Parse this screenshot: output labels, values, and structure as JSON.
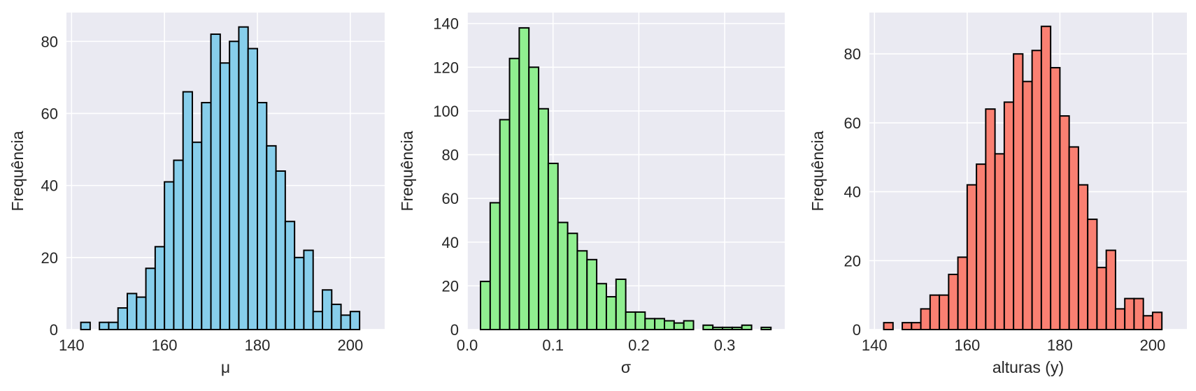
{
  "chart_data": [
    {
      "type": "bar",
      "subtype": "histogram",
      "xlabel": "μ",
      "ylabel": "Frequência",
      "xlim": [
        138.9,
        207.4
      ],
      "ylim": [
        0,
        88
      ],
      "xticks": [
        140,
        160,
        180,
        200
      ],
      "yticks": [
        0,
        20,
        40,
        60,
        80
      ],
      "color": "#87ceeb",
      "edgecolor": "#000000",
      "grid": true,
      "bin_start": 142.0,
      "bin_width": 2.0,
      "values": [
        2,
        0,
        2,
        2,
        6,
        10,
        9,
        17,
        23,
        41,
        47,
        66,
        52,
        63,
        82,
        74,
        80,
        84,
        78,
        63,
        51,
        44,
        30,
        20,
        22,
        5,
        11,
        7,
        4,
        5
      ]
    },
    {
      "type": "bar",
      "subtype": "histogram",
      "xlabel": "σ",
      "ylabel": "Frequência",
      "xlim": [
        0.0,
        0.37
      ],
      "ylim": [
        0,
        145
      ],
      "xticks": [
        0.0,
        0.1,
        0.2,
        0.3
      ],
      "xtick_labels": [
        "0.0",
        "0.1",
        "0.2",
        "0.3"
      ],
      "yticks": [
        0,
        20,
        40,
        60,
        80,
        100,
        120,
        140
      ],
      "color": "#90ee90",
      "edgecolor": "#000000",
      "grid": true,
      "bin_start": 0.0155,
      "bin_width": 0.01128,
      "values": [
        22,
        58,
        96,
        124,
        138,
        120,
        101,
        76,
        49,
        44,
        36,
        32,
        21,
        15,
        23,
        8,
        8,
        5,
        5,
        4,
        3,
        4,
        0,
        2,
        1,
        1,
        1,
        2,
        0,
        1
      ]
    },
    {
      "type": "bar",
      "subtype": "histogram",
      "xlabel": "alturas (y)",
      "ylabel": "Frequência",
      "xlim": [
        138.9,
        207.4
      ],
      "ylim": [
        0,
        92
      ],
      "xticks": [
        140,
        160,
        180,
        200
      ],
      "yticks": [
        0,
        20,
        40,
        60,
        80
      ],
      "color": "#fa8072",
      "edgecolor": "#000000",
      "grid": true,
      "bin_start": 142.0,
      "bin_width": 2.0,
      "values": [
        2,
        0,
        2,
        2,
        6,
        10,
        10,
        16,
        21,
        42,
        48,
        64,
        51,
        66,
        80,
        72,
        81,
        88,
        76,
        62,
        53,
        42,
        32,
        18,
        23,
        6,
        9,
        9,
        4,
        5
      ]
    }
  ]
}
